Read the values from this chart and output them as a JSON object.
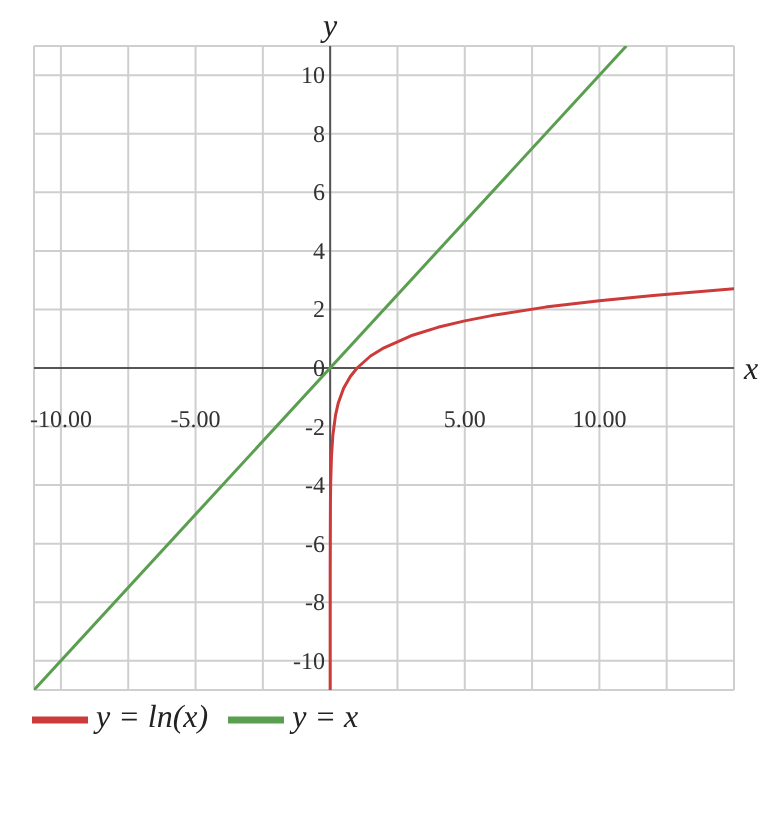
{
  "chart_data": {
    "type": "line",
    "xlabel": "x",
    "ylabel": "y",
    "xlim": [
      -11,
      15
    ],
    "ylim": [
      -11,
      11
    ],
    "xticks": [
      {
        "value": -10,
        "label": "-10.00"
      },
      {
        "value": -7.5,
        "label": null
      },
      {
        "value": -5,
        "label": "-5.00"
      },
      {
        "value": -2.5,
        "label": null
      },
      {
        "value": 0,
        "label": null
      },
      {
        "value": 2.5,
        "label": null
      },
      {
        "value": 5,
        "label": "5.00"
      },
      {
        "value": 7.5,
        "label": null
      },
      {
        "value": 10,
        "label": "10.00"
      },
      {
        "value": 12.5,
        "label": null
      }
    ],
    "yticks": [
      -10,
      -8,
      -6,
      -4,
      -2,
      0,
      2,
      4,
      6,
      8,
      10
    ],
    "grid": true,
    "legend": "bottom left",
    "line_style": "solid",
    "marker": "none",
    "series": [
      {
        "name": "y = ln(x)",
        "color": "#cc3a3a",
        "x": [
          1.67e-05,
          0.0001,
          0.001,
          0.01,
          0.02,
          0.05,
          0.1,
          0.2,
          0.3,
          0.5,
          0.75,
          1,
          1.5,
          2,
          3,
          4,
          5,
          6,
          8,
          10,
          12,
          15
        ],
        "values": [
          -11,
          -9.21,
          -6.91,
          -4.61,
          -3.91,
          -3.0,
          -2.3,
          -1.61,
          -1.2,
          -0.69,
          -0.29,
          0,
          0.41,
          0.69,
          1.1,
          1.39,
          1.61,
          1.79,
          2.08,
          2.3,
          2.48,
          2.71
        ]
      },
      {
        "name": "y = x",
        "color": "#5a9e4f",
        "x": [
          -11,
          11
        ],
        "values": [
          -11,
          11
        ]
      }
    ]
  }
}
